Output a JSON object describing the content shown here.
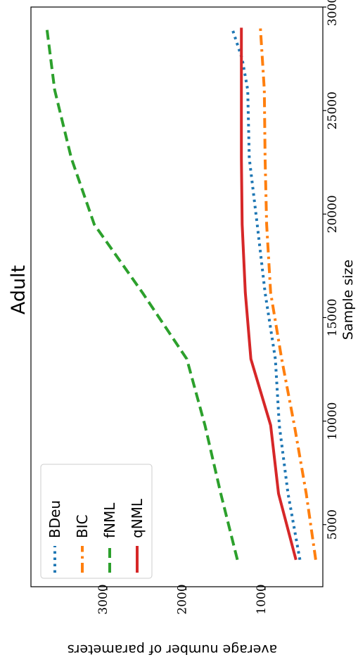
{
  "chart_data": {
    "type": "line",
    "orientation": "rotated-90-counterclockwise",
    "title": "Adult",
    "xlabel": "Sample size",
    "ylabel": "average number of parameters",
    "xlim": [
      2000,
      30000
    ],
    "ylim": [
      270,
      3960
    ],
    "xticks": [
      5000,
      10000,
      15000,
      20000,
      25000,
      30000
    ],
    "xtick_labels": [
      "5000",
      "10000",
      "15000",
      "20000",
      "25000",
      "30000"
    ],
    "yticks": [
      1000,
      2000,
      3000
    ],
    "ytick_labels": [
      "1000",
      "2000",
      "3000"
    ],
    "legend_position": "lower-left",
    "grid": false,
    "series": [
      {
        "name": "BDeu",
        "color": "#1f77b4",
        "style": "dotted",
        "x": [
          3300,
          6500,
          9800,
          13000,
          16200,
          19500,
          22700,
          26000,
          27500,
          29000
        ],
        "y": [
          560,
          710,
          820,
          870,
          1000,
          1100,
          1200,
          1220,
          1290,
          1420
        ]
      },
      {
        "name": "BIC",
        "color": "#ff7f0e",
        "style": "dashdot",
        "x": [
          3300,
          6500,
          9800,
          13000,
          16200,
          19500,
          22700,
          26000,
          29000
        ],
        "y": [
          360,
          480,
          630,
          790,
          930,
          980,
          1000,
          1010,
          1060
        ]
      },
      {
        "name": "fNML",
        "color": "#2ca02c",
        "style": "dashed",
        "x": [
          3300,
          6500,
          9800,
          13000,
          16200,
          19500,
          22700,
          26000,
          29000
        ],
        "y": [
          1350,
          1560,
          1760,
          1990,
          2550,
          3160,
          3450,
          3660,
          3760
        ]
      },
      {
        "name": "qNML",
        "color": "#d62728",
        "style": "solid",
        "x": [
          3300,
          6500,
          9800,
          13000,
          16200,
          19500,
          22700,
          26000,
          29000
        ],
        "y": [
          610,
          830,
          930,
          1180,
          1250,
          1290,
          1300,
          1300,
          1300
        ]
      }
    ]
  }
}
